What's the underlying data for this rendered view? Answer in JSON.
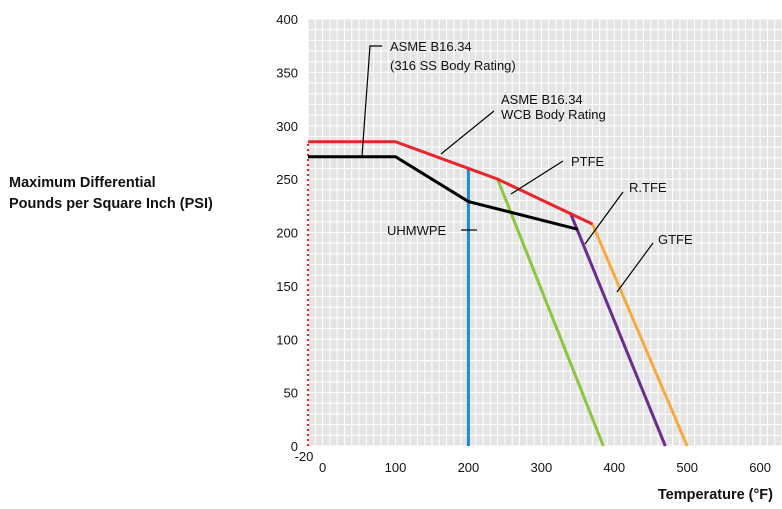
{
  "chart_data": {
    "type": "line",
    "ylabel": [
      "Maximum Differential",
      "Pounds per Square Inch (PSI)"
    ],
    "xlabel": "Temperature (°F)",
    "xlim": [
      -20,
      650
    ],
    "ylim": [
      0,
      400
    ],
    "x_ticks": [
      0,
      100,
      200,
      300,
      400,
      500,
      600
    ],
    "x_extra_tick": "-20",
    "y_ticks": [
      0,
      50,
      100,
      150,
      200,
      250,
      300,
      350,
      400
    ],
    "grid": true,
    "grid_minor": 10,
    "colors": {
      "background": "#e4e4e4",
      "grid": "#ffffff",
      "wcb": "#e8252a",
      "ss316": "#000000",
      "ptfe": "#8cc63f",
      "rtfe": "#6a2c91",
      "gtfe": "#f7a941",
      "uhmwpe": "#1d8bd1"
    },
    "series": [
      {
        "key": "wcb",
        "name": "ASME  B16.34\nWCB Body Rating",
        "x": [
          -20,
          100,
          200,
          240,
          370
        ],
        "y": [
          285,
          285,
          260,
          250,
          208
        ]
      },
      {
        "key": "ss316",
        "name": "ASME  B16.34\n(316 SS Body Rating)",
        "x": [
          -20,
          100,
          200,
          350
        ],
        "y": [
          271,
          271,
          229,
          203
        ]
      },
      {
        "key": "ptfe",
        "name": "PTFE",
        "x": [
          240,
          385
        ],
        "y": [
          250,
          0
        ]
      },
      {
        "key": "rtfe",
        "name": "R.TFE",
        "x": [
          340,
          470
        ],
        "y": [
          218,
          0
        ]
      },
      {
        "key": "gtfe",
        "name": "GTFE",
        "x": [
          370,
          500
        ],
        "y": [
          208,
          0
        ]
      },
      {
        "key": "uhmwpe",
        "name": "UHMWPE",
        "x": [
          200,
          200
        ],
        "y": [
          260,
          0
        ]
      }
    ],
    "annotations": [
      {
        "lines": [
          "ASME  B16.34",
          "(316 SS Body Rating)"
        ],
        "series": "ss316"
      },
      {
        "lines": [
          "ASME  B16.34",
          "WCB Body Rating"
        ],
        "series": "wcb"
      },
      {
        "lines": [
          "PTFE"
        ],
        "series": "ptfe"
      },
      {
        "lines": [
          "R.TFE"
        ],
        "series": "rtfe"
      },
      {
        "lines": [
          "GTFE"
        ],
        "series": "gtfe"
      },
      {
        "lines": [
          "UHMWPE"
        ],
        "series": "uhmwpe"
      }
    ],
    "dotted_line": {
      "x": -20,
      "y": [
        0,
        285
      ],
      "color": "#e8252a"
    }
  }
}
